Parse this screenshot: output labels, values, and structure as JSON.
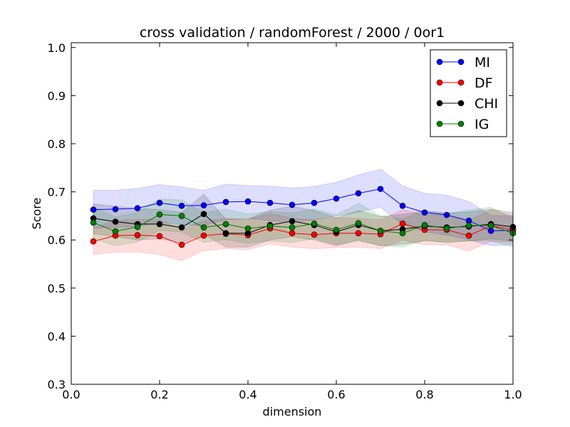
{
  "chart_data": {
    "type": "line",
    "title": "cross validation / randomForest / 2000 / 0or1",
    "xlabel": "dimension",
    "ylabel": "Score",
    "xlim": [
      0.0,
      1.0
    ],
    "ylim": [
      0.3,
      1.01
    ],
    "xticks": [
      "0.0",
      "0.2",
      "0.4",
      "0.6",
      "0.8",
      "1.0"
    ],
    "yticks": [
      "0.3",
      "0.4",
      "0.5",
      "0.6",
      "0.7",
      "0.8",
      "0.9",
      "1.0"
    ],
    "legend_position": "top-right",
    "grid": false,
    "x": [
      0.05,
      0.1,
      0.15,
      0.2,
      0.25,
      0.3,
      0.35,
      0.4,
      0.45,
      0.5,
      0.55,
      0.6,
      0.65,
      0.7,
      0.75,
      0.8,
      0.85,
      0.9,
      0.95,
      1.0
    ],
    "series": [
      {
        "name": "MI",
        "color": "#0000ff",
        "values": [
          0.663,
          0.664,
          0.666,
          0.677,
          0.671,
          0.672,
          0.679,
          0.68,
          0.677,
          0.673,
          0.677,
          0.686,
          0.697,
          0.706,
          0.671,
          0.657,
          0.652,
          0.64,
          0.619,
          0.62
        ],
        "lower": [
          0.625,
          0.626,
          0.628,
          0.637,
          0.632,
          0.63,
          0.642,
          0.645,
          0.64,
          0.637,
          0.642,
          0.65,
          0.658,
          0.668,
          0.632,
          0.617,
          0.61,
          0.6,
          0.588,
          0.59
        ],
        "upper": [
          0.703,
          0.703,
          0.707,
          0.715,
          0.71,
          0.703,
          0.716,
          0.713,
          0.712,
          0.708,
          0.711,
          0.72,
          0.735,
          0.747,
          0.712,
          0.697,
          0.693,
          0.68,
          0.651,
          0.65
        ]
      },
      {
        "name": "DF",
        "color": "#ff0000",
        "values": [
          0.597,
          0.609,
          0.61,
          0.608,
          0.59,
          0.609,
          0.613,
          0.61,
          0.624,
          0.614,
          0.611,
          0.614,
          0.614,
          0.612,
          0.634,
          0.621,
          0.621,
          0.609,
          0.63,
          0.621
        ],
        "lower": [
          0.57,
          0.575,
          0.575,
          0.57,
          0.557,
          0.578,
          0.582,
          0.58,
          0.592,
          0.585,
          0.582,
          0.584,
          0.585,
          0.582,
          0.6,
          0.59,
          0.59,
          0.577,
          0.597,
          0.595
        ],
        "upper": [
          0.625,
          0.64,
          0.643,
          0.643,
          0.622,
          0.64,
          0.645,
          0.643,
          0.655,
          0.645,
          0.642,
          0.646,
          0.645,
          0.642,
          0.663,
          0.652,
          0.652,
          0.64,
          0.663,
          0.65
        ]
      },
      {
        "name": "CHI",
        "color": "#000000",
        "values": [
          0.645,
          0.638,
          0.633,
          0.633,
          0.626,
          0.654,
          0.614,
          0.614,
          0.631,
          0.639,
          0.631,
          0.617,
          0.631,
          0.619,
          0.622,
          0.629,
          0.626,
          0.628,
          0.633,
          0.627
        ],
        "lower": [
          0.613,
          0.607,
          0.6,
          0.602,
          0.595,
          0.612,
          0.585,
          0.585,
          0.6,
          0.607,
          0.6,
          0.588,
          0.6,
          0.588,
          0.591,
          0.598,
          0.596,
          0.598,
          0.602,
          0.597
        ],
        "upper": [
          0.675,
          0.67,
          0.665,
          0.663,
          0.657,
          0.695,
          0.643,
          0.643,
          0.662,
          0.67,
          0.661,
          0.646,
          0.661,
          0.649,
          0.653,
          0.66,
          0.656,
          0.658,
          0.664,
          0.657
        ]
      },
      {
        "name": "IG",
        "color": "#008000",
        "values": [
          0.636,
          0.618,
          0.627,
          0.653,
          0.65,
          0.626,
          0.633,
          0.624,
          0.629,
          0.626,
          0.634,
          0.621,
          0.635,
          0.619,
          0.614,
          0.631,
          0.624,
          0.63,
          0.63,
          0.614
        ],
        "lower": [
          0.603,
          0.588,
          0.596,
          0.62,
          0.617,
          0.595,
          0.601,
          0.593,
          0.598,
          0.595,
          0.603,
          0.59,
          0.598,
          0.588,
          0.585,
          0.6,
          0.594,
          0.598,
          0.598,
          0.585
        ],
        "upper": [
          0.668,
          0.648,
          0.657,
          0.685,
          0.683,
          0.657,
          0.664,
          0.654,
          0.659,
          0.656,
          0.664,
          0.652,
          0.676,
          0.65,
          0.644,
          0.661,
          0.655,
          0.662,
          0.668,
          0.645
        ]
      }
    ]
  }
}
